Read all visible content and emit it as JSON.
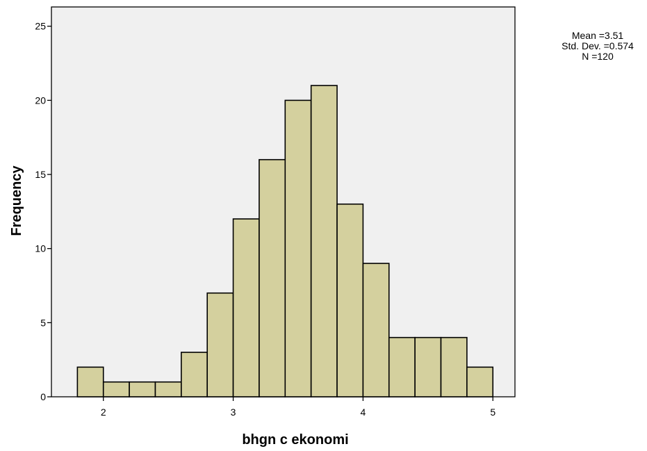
{
  "chart_data": {
    "type": "bar",
    "subtype": "histogram",
    "xlabel": "bhgn c ekonomi",
    "ylabel": "Frequency",
    "bin_width": 0.2,
    "bins": [
      {
        "start": 1.8,
        "end": 2.0,
        "count": 2
      },
      {
        "start": 2.0,
        "end": 2.2,
        "count": 1
      },
      {
        "start": 2.2,
        "end": 2.4,
        "count": 1
      },
      {
        "start": 2.4,
        "end": 2.6,
        "count": 1
      },
      {
        "start": 2.6,
        "end": 2.8,
        "count": 3
      },
      {
        "start": 2.8,
        "end": 3.0,
        "count": 7
      },
      {
        "start": 3.0,
        "end": 3.2,
        "count": 12
      },
      {
        "start": 3.2,
        "end": 3.4,
        "count": 16
      },
      {
        "start": 3.4,
        "end": 3.6,
        "count": 20
      },
      {
        "start": 3.6,
        "end": 3.8,
        "count": 21
      },
      {
        "start": 3.8,
        "end": 4.0,
        "count": 13
      },
      {
        "start": 4.0,
        "end": 4.2,
        "count": 9
      },
      {
        "start": 4.2,
        "end": 4.4,
        "count": 4
      },
      {
        "start": 4.4,
        "end": 4.6,
        "count": 4
      },
      {
        "start": 4.6,
        "end": 4.8,
        "count": 4
      },
      {
        "start": 4.8,
        "end": 5.0,
        "count": 2
      }
    ],
    "xlim": [
      1.6,
      5.17
    ],
    "ylim": [
      0,
      26.3
    ],
    "xticks": [
      2,
      3,
      4,
      5
    ],
    "yticks": [
      0,
      5,
      10,
      15,
      20,
      25
    ],
    "grid": false,
    "colors": {
      "bar_fill": "#d4d09e",
      "bar_stroke": "#000000",
      "plot_background": "#f0f0f0"
    }
  },
  "stats": {
    "mean": "Mean =3.51",
    "std_dev": "Std. Dev. =0.574",
    "n": "N =120"
  }
}
